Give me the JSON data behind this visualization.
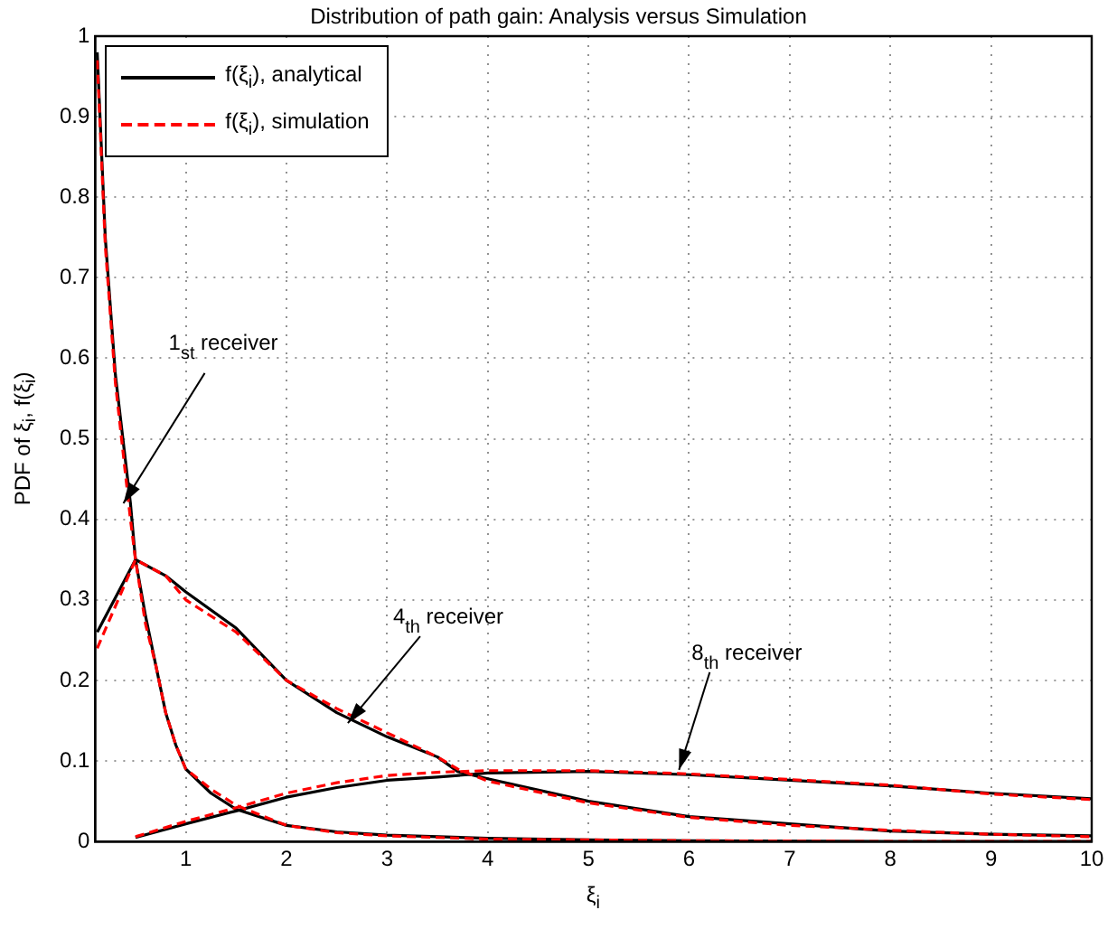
{
  "chart_data": {
    "type": "line",
    "title": "Distribution of path gain: Analysis versus Simulation",
    "xlabel": "ξ$_{i}$",
    "ylabel": "PDF of ξ$_{i}$, f(ξ$_{i}$)",
    "xlim": [
      0.1,
      10
    ],
    "ylim": [
      0,
      1
    ],
    "xticks": [
      1,
      2,
      3,
      4,
      5,
      6,
      7,
      8,
      9,
      10
    ],
    "yticks": [
      0,
      0.1,
      0.2,
      0.3,
      0.4,
      0.5,
      0.6,
      0.7,
      0.8,
      0.9,
      1
    ],
    "grid": true,
    "legend": "top left",
    "marker": "none",
    "series": [
      {
        "name": "f(ξ$_{i}$), analytical",
        "color": "#000000",
        "line_style": "solid",
        "x": [
          0.12,
          0.2,
          0.3,
          0.45,
          0.5,
          0.6,
          0.7,
          0.8,
          0.9,
          1,
          1.25,
          1.5,
          2,
          2.5,
          3,
          4,
          5,
          6,
          8,
          10
        ],
        "values": [
          0.98,
          0.75,
          0.58,
          0.42,
          0.35,
          0.28,
          0.22,
          0.16,
          0.12,
          0.09,
          0.06,
          0.04,
          0.02,
          0.012,
          0.008,
          0.004,
          0.002,
          0.001,
          0,
          0
        ]
      },
      {
        "name": "f(ξ$_{i}$), simulation",
        "color": "#ff0000",
        "line_style": "dashed",
        "x": [
          0.12,
          0.2,
          0.3,
          0.45,
          0.5,
          0.6,
          0.7,
          0.8,
          0.9,
          1,
          1.25,
          1.5,
          2,
          2.5,
          3,
          4,
          5,
          6,
          8,
          10
        ],
        "values": [
          0.97,
          0.74,
          0.57,
          0.4,
          0.35,
          0.27,
          0.22,
          0.16,
          0.12,
          0.09,
          0.065,
          0.045,
          0.02,
          0.011,
          0.007,
          0.003,
          0.002,
          0.001,
          0,
          0
        ]
      },
      {
        "color": "#000000",
        "line_style": "solid",
        "x": [
          0.12,
          0.5,
          0.8,
          1,
          1.5,
          2,
          2.5,
          3,
          3.5,
          3.7,
          4,
          5,
          6,
          7,
          8,
          9,
          10
        ],
        "values": [
          0.26,
          0.35,
          0.33,
          0.31,
          0.265,
          0.2,
          0.16,
          0.13,
          0.105,
          0.087,
          0.078,
          0.05,
          0.031,
          0.022,
          0.013,
          0.009,
          0.007
        ]
      },
      {
        "color": "#ff0000",
        "line_style": "dashed",
        "x": [
          0.12,
          0.5,
          0.8,
          1,
          1.5,
          2,
          2.5,
          3,
          3.5,
          3.7,
          4,
          5,
          6,
          7,
          8,
          9,
          10
        ],
        "values": [
          0.24,
          0.35,
          0.33,
          0.3,
          0.26,
          0.2,
          0.165,
          0.135,
          0.105,
          0.09,
          0.075,
          0.048,
          0.03,
          0.02,
          0.014,
          0.009,
          0.006
        ]
      },
      {
        "color": "#000000",
        "line_style": "solid",
        "x": [
          0.5,
          1,
          1.5,
          2,
          2.5,
          3,
          3.5,
          4,
          5,
          6,
          7,
          8,
          9,
          10
        ],
        "values": [
          0.005,
          0.022,
          0.038,
          0.055,
          0.067,
          0.076,
          0.08,
          0.085,
          0.087,
          0.083,
          0.076,
          0.069,
          0.06,
          0.053
        ]
      },
      {
        "color": "#ff0000",
        "line_style": "dashed",
        "x": [
          0.5,
          1,
          1.5,
          2,
          2.5,
          3,
          3.5,
          4,
          5,
          6,
          7,
          8,
          9,
          10
        ],
        "values": [
          0.006,
          0.025,
          0.042,
          0.06,
          0.073,
          0.082,
          0.086,
          0.088,
          0.088,
          0.084,
          0.077,
          0.07,
          0.059,
          0.052
        ]
      }
    ],
    "annotations": [
      {
        "text": "1$_{st}$ receiver",
        "x": 0.38,
        "y": 0.42
      },
      {
        "text": "4$_{th}$ receiver",
        "x": 2.61,
        "y": 0.147
      },
      {
        "text": "8$_{th}$ receiver",
        "x": 5.9,
        "y": 0.089
      }
    ]
  }
}
